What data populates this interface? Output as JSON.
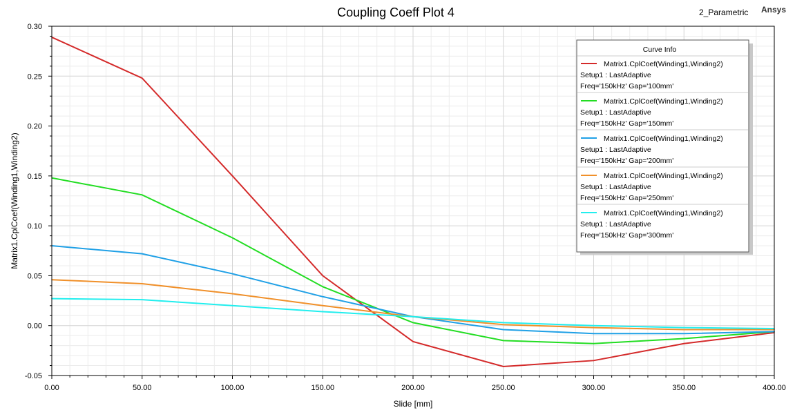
{
  "header": {
    "title": "Coupling Coeff Plot 4",
    "design_name": "2_Parametric",
    "brand": "Ansys"
  },
  "legend": {
    "title": "Curve Info",
    "line2": "Setup1 : LastAdaptive"
  },
  "colors": {
    "grid_major": "#d4d4d4",
    "grid_minor": "#ececec",
    "frame": "#000000"
  },
  "chart_data": {
    "type": "line",
    "title": "Coupling Coeff Plot 4",
    "xlabel": "Slide [mm]",
    "ylabel": "Matrix1.CplCoef(Winding1,Winding2)",
    "xlim": [
      0,
      400
    ],
    "ylim": [
      -0.05,
      0.3
    ],
    "x": [
      0,
      50,
      100,
      150,
      200,
      250,
      300,
      350,
      400
    ],
    "x_ticks": [
      "0.00",
      "50.00",
      "100.00",
      "150.00",
      "200.00",
      "250.00",
      "300.00",
      "350.00",
      "400.00"
    ],
    "y_ticks": [
      "-0.05",
      "0.00",
      "0.05",
      "0.10",
      "0.15",
      "0.20",
      "0.25",
      "0.30"
    ],
    "grid": true,
    "legend_position": "top-right",
    "series": [
      {
        "name": "Matrix1.CplCoef(Winding1,Winding2)",
        "params": "Freq='150kHz' Gap='100mm'",
        "color": "#d42a2a",
        "values": [
          0.289,
          0.248,
          0.15,
          0.05,
          -0.016,
          -0.041,
          -0.035,
          -0.018,
          -0.007
        ]
      },
      {
        "name": "Matrix1.CplCoef(Winding1,Winding2)",
        "params": "Freq='150kHz' Gap='150mm'",
        "color": "#22dd22",
        "values": [
          0.148,
          0.131,
          0.088,
          0.039,
          0.003,
          -0.015,
          -0.018,
          -0.013,
          -0.006
        ]
      },
      {
        "name": "Matrix1.CplCoef(Winding1,Winding2)",
        "params": "Freq='150kHz' Gap='200mm'",
        "color": "#1fa0e6",
        "values": [
          0.08,
          0.072,
          0.052,
          0.029,
          0.009,
          -0.004,
          -0.008,
          -0.008,
          -0.006
        ]
      },
      {
        "name": "Matrix1.CplCoef(Winding1,Winding2)",
        "params": "Freq='150kHz' Gap='250mm'",
        "color": "#f0902a",
        "values": [
          0.046,
          0.042,
          0.032,
          0.02,
          0.009,
          0.001,
          -0.002,
          -0.004,
          -0.004
        ]
      },
      {
        "name": "Matrix1.CplCoef(Winding1,Winding2)",
        "params": "Freq='150kHz' Gap='300mm'",
        "color": "#22eeee",
        "values": [
          0.027,
          0.026,
          0.02,
          0.014,
          0.009,
          0.003,
          0.0,
          -0.002,
          -0.003
        ]
      }
    ]
  }
}
